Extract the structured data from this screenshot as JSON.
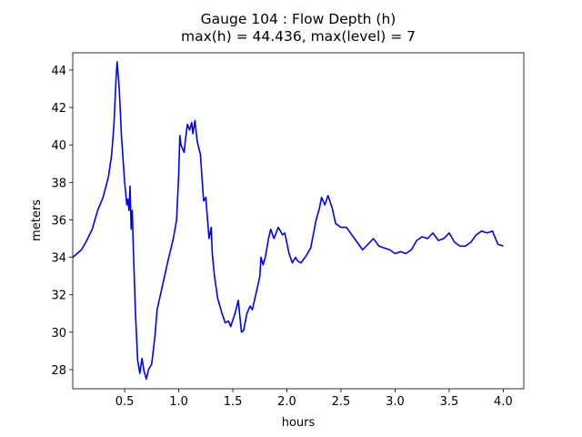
{
  "chart_data": {
    "type": "line",
    "title": "Gauge 104 : Flow Depth (h)",
    "subtitle": "max(h) =  44.436,    max(level) = 7",
    "x_label": "hours",
    "y_label": "meters",
    "color": "#0000ff",
    "xlim": [
      0.02,
      4.19
    ],
    "ylim": [
      26.98,
      44.92
    ],
    "xticks": [
      0.5,
      {
        "value": 1,
        "label": "1.0"
      },
      1.5,
      {
        "value": 2,
        "label": "2.0"
      },
      2.5,
      {
        "value": 3,
        "label": "3.0"
      },
      3.5,
      {
        "value": 4,
        "label": "4.0"
      }
    ],
    "yticks": [
      28,
      30,
      32,
      34,
      36,
      38,
      40,
      42,
      44
    ],
    "x": [
      0.02,
      0.1,
      0.15,
      0.2,
      0.25,
      0.3,
      0.35,
      0.38,
      0.4,
      0.42,
      0.43,
      0.45,
      0.47,
      0.5,
      0.52,
      0.53,
      0.54,
      0.55,
      0.56,
      0.57,
      0.58,
      0.6,
      0.62,
      0.64,
      0.66,
      0.68,
      0.7,
      0.72,
      0.75,
      0.78,
      0.8,
      0.85,
      0.9,
      0.95,
      0.98,
      1.0,
      1.01,
      1.02,
      1.05,
      1.06,
      1.08,
      1.1,
      1.12,
      1.13,
      1.15,
      1.17,
      1.2,
      1.23,
      1.25,
      1.28,
      1.3,
      1.31,
      1.33,
      1.36,
      1.4,
      1.43,
      1.46,
      1.48,
      1.52,
      1.55,
      1.58,
      1.6,
      1.63,
      1.66,
      1.68,
      1.72,
      1.75,
      1.76,
      1.78,
      1.8,
      1.83,
      1.85,
      1.88,
      1.92,
      1.96,
      1.98,
      2.02,
      2.05,
      2.08,
      2.1,
      2.13,
      2.18,
      2.22,
      2.27,
      2.3,
      2.32,
      2.35,
      2.38,
      2.42,
      2.45,
      2.5,
      2.55,
      2.6,
      2.65,
      2.7,
      2.75,
      2.8,
      2.85,
      2.9,
      2.95,
      3.0,
      3.05,
      3.1,
      3.15,
      3.2,
      3.25,
      3.3,
      3.35,
      3.4,
      3.45,
      3.5,
      3.55,
      3.6,
      3.65,
      3.7,
      3.75,
      3.8,
      3.85,
      3.9,
      3.95,
      4.0
    ],
    "values": [
      34.0,
      34.4,
      34.9,
      35.5,
      36.5,
      37.2,
      38.3,
      39.5,
      41.0,
      43.5,
      44.436,
      43.0,
      40.5,
      38.0,
      36.8,
      37.1,
      36.5,
      37.8,
      35.5,
      36.5,
      34.5,
      31.0,
      28.5,
      27.8,
      28.6,
      27.9,
      27.5,
      28.0,
      28.3,
      29.8,
      31.2,
      32.5,
      33.8,
      35.0,
      36.0,
      38.5,
      40.5,
      40.0,
      39.6,
      40.2,
      41.1,
      40.8,
      41.2,
      40.6,
      41.3,
      40.2,
      39.5,
      37.0,
      37.2,
      35.0,
      35.6,
      34.2,
      33.0,
      31.8,
      31.0,
      30.5,
      30.6,
      30.3,
      31.0,
      31.7,
      30.0,
      30.1,
      31.0,
      31.4,
      31.2,
      32.2,
      33.0,
      34.0,
      33.6,
      34.0,
      35.0,
      35.5,
      35.0,
      35.6,
      35.2,
      35.3,
      34.2,
      33.7,
      34.0,
      33.8,
      33.7,
      34.1,
      34.5,
      36.0,
      36.6,
      37.2,
      36.8,
      37.3,
      36.6,
      35.8,
      35.6,
      35.6,
      35.2,
      34.8,
      34.4,
      34.7,
      35.0,
      34.6,
      34.5,
      34.4,
      34.2,
      34.3,
      34.2,
      34.4,
      34.9,
      35.1,
      35.0,
      35.3,
      34.9,
      35.0,
      35.3,
      34.8,
      34.6,
      34.6,
      34.8,
      35.2,
      35.4,
      35.3,
      35.4,
      34.7,
      34.6
    ]
  }
}
